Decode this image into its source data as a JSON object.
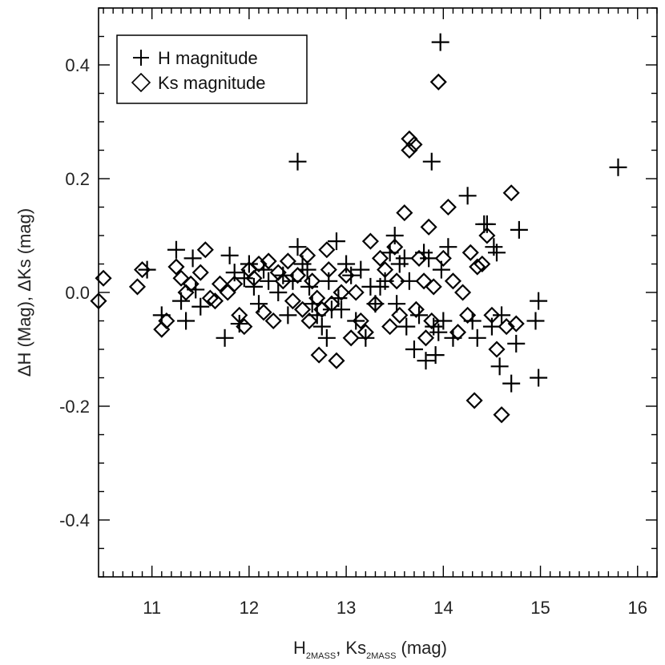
{
  "chart_data": {
    "type": "scatter",
    "xlabel_main": "H",
    "xlabel_sub1": "2MASS",
    "xlabel_mid": ", Ks",
    "xlabel_sub2": "2MASS",
    "xlabel_tail": " (mag)",
    "ylabel": "ΔH (Mag), ΔKs (mag)",
    "xlim": [
      10.45,
      16.2
    ],
    "ylim": [
      -0.5,
      0.5
    ],
    "x_ticks": [
      11,
      12,
      13,
      14,
      15,
      16
    ],
    "x_tick_labels": [
      "11",
      "12",
      "13",
      "14",
      "15",
      "16"
    ],
    "y_ticks": [
      0.4,
      0.2,
      0.0,
      -0.2,
      -0.4
    ],
    "y_tick_labels": [
      "0.4",
      "0.2",
      "0.0",
      "-0.2",
      "-0.4"
    ],
    "legend_position": "top-left",
    "series": [
      {
        "name": "H magnitude",
        "marker": "plus",
        "points": [
          [
            10.95,
            0.04
          ],
          [
            11.1,
            -0.04
          ],
          [
            11.25,
            0.075
          ],
          [
            11.3,
            -0.015
          ],
          [
            11.35,
            -0.05
          ],
          [
            11.42,
            0.06
          ],
          [
            11.45,
            0.005
          ],
          [
            11.5,
            -0.025
          ],
          [
            11.75,
            -0.08
          ],
          [
            11.8,
            0.065
          ],
          [
            11.85,
            0.035
          ],
          [
            11.9,
            -0.055
          ],
          [
            11.95,
            0.025
          ],
          [
            12.0,
            0.05
          ],
          [
            12.05,
            0.01
          ],
          [
            12.1,
            -0.02
          ],
          [
            12.15,
            0.04
          ],
          [
            12.2,
            0.02
          ],
          [
            12.3,
            0.0
          ],
          [
            12.35,
            0.03
          ],
          [
            12.4,
            -0.04
          ],
          [
            12.45,
            0.02
          ],
          [
            12.5,
            0.08
          ],
          [
            12.5,
            0.23
          ],
          [
            12.55,
            0.05
          ],
          [
            12.6,
            0.04
          ],
          [
            12.62,
            0.01
          ],
          [
            12.65,
            -0.02
          ],
          [
            12.7,
            -0.04
          ],
          [
            12.75,
            -0.06
          ],
          [
            12.8,
            -0.08
          ],
          [
            12.82,
            0.02
          ],
          [
            12.85,
            -0.03
          ],
          [
            12.9,
            0.09
          ],
          [
            12.92,
            -0.01
          ],
          [
            12.95,
            -0.03
          ],
          [
            13.0,
            0.05
          ],
          [
            13.05,
            0.03
          ],
          [
            13.1,
            -0.05
          ],
          [
            13.15,
            0.04
          ],
          [
            13.2,
            -0.08
          ],
          [
            13.25,
            0.01
          ],
          [
            13.3,
            -0.02
          ],
          [
            13.35,
            0.01
          ],
          [
            13.4,
            0.02
          ],
          [
            13.45,
            0.07
          ],
          [
            13.5,
            0.1
          ],
          [
            13.52,
            -0.02
          ],
          [
            13.55,
            0.05
          ],
          [
            13.6,
            0.06
          ],
          [
            13.62,
            -0.06
          ],
          [
            13.65,
            0.02
          ],
          [
            13.7,
            -0.1
          ],
          [
            13.75,
            -0.04
          ],
          [
            13.8,
            0.07
          ],
          [
            13.82,
            -0.12
          ],
          [
            13.85,
            0.06
          ],
          [
            13.88,
            0.23
          ],
          [
            13.9,
            -0.06
          ],
          [
            13.92,
            -0.11
          ],
          [
            13.95,
            -0.07
          ],
          [
            13.97,
            0.44
          ],
          [
            13.98,
            0.04
          ],
          [
            14.0,
            -0.05
          ],
          [
            14.05,
            0.08
          ],
          [
            14.1,
            -0.08
          ],
          [
            14.25,
            0.17
          ],
          [
            14.3,
            -0.05
          ],
          [
            14.35,
            -0.08
          ],
          [
            14.42,
            0.12
          ],
          [
            14.45,
            0.12
          ],
          [
            14.5,
            -0.06
          ],
          [
            14.52,
            0.08
          ],
          [
            14.55,
            0.07
          ],
          [
            14.58,
            -0.13
          ],
          [
            14.6,
            -0.04
          ],
          [
            14.7,
            -0.16
          ],
          [
            14.75,
            -0.09
          ],
          [
            14.78,
            0.11
          ],
          [
            14.95,
            -0.05
          ],
          [
            14.98,
            -0.015
          ],
          [
            14.98,
            -0.15
          ],
          [
            15.8,
            0.22
          ]
        ]
      },
      {
        "name": "Ks magnitude",
        "marker": "diamond",
        "points": [
          [
            10.45,
            -0.015
          ],
          [
            10.5,
            0.025
          ],
          [
            10.85,
            0.01
          ],
          [
            10.9,
            0.04
          ],
          [
            11.1,
            -0.065
          ],
          [
            11.15,
            -0.05
          ],
          [
            11.25,
            0.045
          ],
          [
            11.3,
            0.025
          ],
          [
            11.35,
            0.0
          ],
          [
            11.4,
            0.015
          ],
          [
            11.5,
            0.035
          ],
          [
            11.55,
            0.075
          ],
          [
            11.6,
            -0.01
          ],
          [
            11.65,
            -0.015
          ],
          [
            11.7,
            0.015
          ],
          [
            11.78,
            0.0
          ],
          [
            11.85,
            0.015
          ],
          [
            11.9,
            -0.04
          ],
          [
            11.95,
            -0.06
          ],
          [
            12.0,
            0.04
          ],
          [
            12.05,
            0.025
          ],
          [
            12.1,
            0.05
          ],
          [
            12.15,
            -0.035
          ],
          [
            12.2,
            0.055
          ],
          [
            12.25,
            -0.05
          ],
          [
            12.3,
            0.035
          ],
          [
            12.35,
            0.02
          ],
          [
            12.4,
            0.055
          ],
          [
            12.45,
            -0.015
          ],
          [
            12.5,
            0.03
          ],
          [
            12.55,
            -0.03
          ],
          [
            12.6,
            0.065
          ],
          [
            12.62,
            -0.05
          ],
          [
            12.65,
            0.02
          ],
          [
            12.7,
            -0.01
          ],
          [
            12.72,
            -0.11
          ],
          [
            12.75,
            -0.03
          ],
          [
            12.8,
            0.075
          ],
          [
            12.82,
            0.04
          ],
          [
            12.85,
            -0.02
          ],
          [
            12.9,
            -0.12
          ],
          [
            12.95,
            0.0
          ],
          [
            13.0,
            0.03
          ],
          [
            13.05,
            -0.08
          ],
          [
            13.1,
            0.0
          ],
          [
            13.15,
            -0.05
          ],
          [
            13.2,
            -0.07
          ],
          [
            13.25,
            0.09
          ],
          [
            13.3,
            -0.02
          ],
          [
            13.35,
            0.06
          ],
          [
            13.4,
            0.04
          ],
          [
            13.45,
            -0.06
          ],
          [
            13.5,
            0.08
          ],
          [
            13.52,
            0.02
          ],
          [
            13.55,
            -0.04
          ],
          [
            13.6,
            0.14
          ],
          [
            13.65,
            0.27
          ],
          [
            13.65,
            0.25
          ],
          [
            13.7,
            0.26
          ],
          [
            13.72,
            -0.03
          ],
          [
            13.75,
            0.06
          ],
          [
            13.8,
            0.02
          ],
          [
            13.82,
            -0.08
          ],
          [
            13.85,
            0.115
          ],
          [
            13.88,
            -0.05
          ],
          [
            13.9,
            0.01
          ],
          [
            13.95,
            0.37
          ],
          [
            14.0,
            0.06
          ],
          [
            14.05,
            0.15
          ],
          [
            14.1,
            0.02
          ],
          [
            14.15,
            -0.07
          ],
          [
            14.2,
            0.0
          ],
          [
            14.25,
            -0.04
          ],
          [
            14.28,
            0.07
          ],
          [
            14.32,
            -0.19
          ],
          [
            14.35,
            0.045
          ],
          [
            14.4,
            0.05
          ],
          [
            14.45,
            0.1
          ],
          [
            14.5,
            -0.04
          ],
          [
            14.55,
            -0.1
          ],
          [
            14.6,
            -0.215
          ],
          [
            14.65,
            -0.06
          ],
          [
            14.7,
            0.175
          ],
          [
            14.75,
            -0.055
          ]
        ]
      }
    ]
  }
}
